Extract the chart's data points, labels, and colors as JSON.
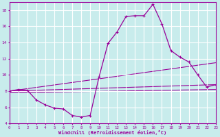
{
  "xlabel": "Windchill (Refroidissement éolien,°C)",
  "background_color": "#c8ecec",
  "line_color": "#990099",
  "grid_color": "#ffffff",
  "xlim": [
    0,
    23
  ],
  "ylim": [
    4,
    19
  ],
  "xticks": [
    0,
    1,
    2,
    3,
    4,
    5,
    6,
    7,
    8,
    9,
    10,
    11,
    12,
    13,
    14,
    15,
    16,
    17,
    18,
    19,
    20,
    21,
    22,
    23
  ],
  "yticks": [
    4,
    6,
    8,
    10,
    12,
    14,
    16,
    18
  ],
  "line1_x": [
    0,
    1,
    2,
    3,
    4,
    5,
    6,
    7,
    8,
    9,
    10,
    11,
    12,
    13,
    14,
    15,
    16,
    17,
    18,
    19,
    20,
    21,
    22,
    23
  ],
  "line1_y": [
    8.0,
    8.2,
    8.1,
    6.9,
    6.3,
    5.9,
    5.8,
    5.0,
    4.8,
    5.0,
    9.8,
    13.9,
    15.3,
    17.2,
    17.3,
    17.3,
    18.7,
    16.3,
    13.0,
    12.2,
    11.6,
    10.0,
    8.5,
    8.8
  ],
  "line2_x": [
    0,
    23
  ],
  "line2_y": [
    8.0,
    8.8
  ],
  "line3_x": [
    0,
    23
  ],
  "line3_y": [
    8.0,
    11.5
  ],
  "line4_x": [
    0,
    23
  ],
  "line4_y": [
    7.8,
    8.2
  ]
}
